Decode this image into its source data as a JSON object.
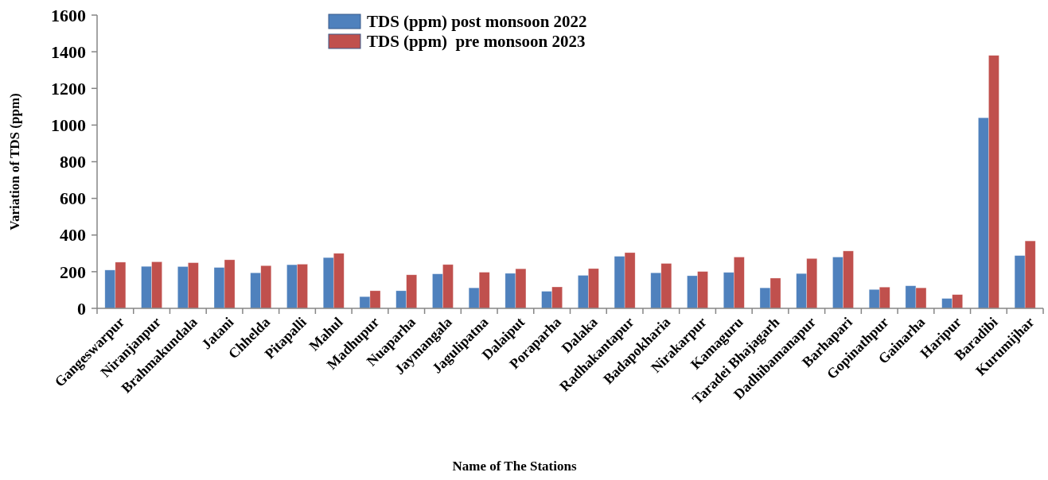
{
  "chart_data": {
    "type": "bar",
    "xlabel": "Name of The Stations",
    "ylabel": "Variation of TDS (ppm)",
    "categories": [
      "Gangeswarpur",
      "Niranjanpur",
      "Brahmakundala",
      "Jatani",
      "Chhelda",
      "Pitapalli",
      "Mahul",
      "Madhupur",
      "Nuaparha",
      "Jaymangala",
      "Jagulipatna",
      "Dalaiput",
      "Poraparha",
      "Dalaka",
      "Radhakantapur",
      "Badapokharia",
      "Nirakarpur",
      "Kamaguru",
      "Taradei Bhajagarh",
      "Dadhibamanapur",
      "Barhapari",
      "Gopinathpur",
      "Gainarha",
      "Haripur",
      "Baradibi",
      "Kurumijhar"
    ],
    "series": [
      {
        "name": "TDS (ppm) post monsoon 2022",
        "color": "#4f81bd",
        "values": [
          209,
          229,
          228,
          223,
          194,
          238,
          277,
          64,
          96,
          188,
          112,
          191,
          93,
          180,
          284,
          194,
          178,
          196,
          112,
          190,
          280,
          103,
          123,
          54,
          1040,
          288
        ]
      },
      {
        "name": "TDS (ppm)  pre monsoon 2023",
        "color": "#c0504d",
        "values": [
          252,
          254,
          249,
          265,
          233,
          241,
          300,
          96,
          183,
          239,
          197,
          216,
          117,
          217,
          304,
          245,
          201,
          280,
          165,
          272,
          313,
          116,
          112,
          75,
          1380,
          368
        ]
      }
    ],
    "ylim": [
      0,
      1600
    ],
    "yticks": [
      0,
      200,
      400,
      600,
      800,
      1000,
      1200,
      1400,
      1600
    ],
    "grid": false,
    "legend": "top"
  }
}
